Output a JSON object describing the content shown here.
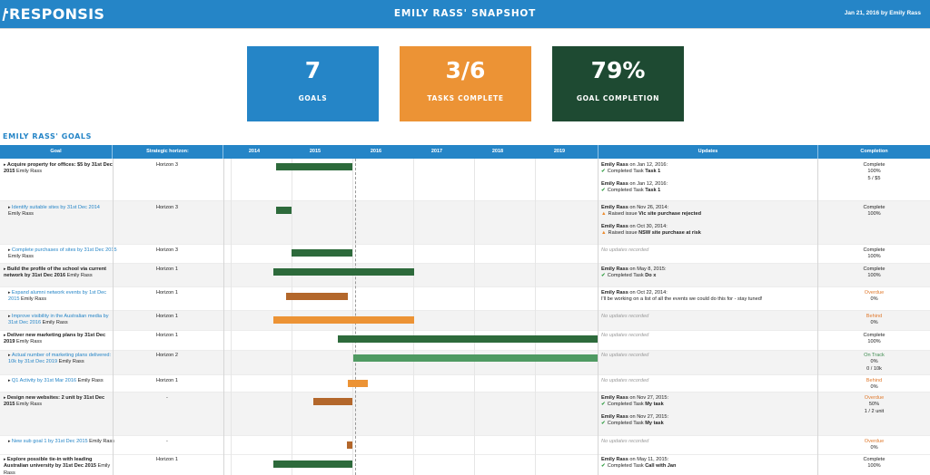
{
  "header": {
    "logo": "RESPONSIS",
    "title": "EMILY RASS' SNAPSHOT",
    "date": "Jan 21, 2016 by Emily Rass"
  },
  "tiles": [
    {
      "value": "7",
      "label": "GOALS",
      "color": "#2585c7"
    },
    {
      "value": "3/6",
      "label": "TASKS COMPLETE",
      "color": "#ec9335"
    },
    {
      "value": "79%",
      "label": "GOAL COMPLETION",
      "color": "#1e4a32"
    }
  ],
  "section_title": "EMILY RASS' GOALS",
  "columns": {
    "goal": "Goal",
    "horizon": "Strategic horizon:",
    "updates": "Updates",
    "completion": "Completion"
  },
  "years": [
    "2014",
    "2015",
    "2016",
    "2017",
    "2018",
    "2019"
  ],
  "colors": {
    "dark_green": "#2d6a3b",
    "light_green": "#4f9a62",
    "brown": "#b3672b",
    "orange": "#ec9335",
    "overdue": "#e07a2e",
    "complete": "#444444"
  },
  "rows": [
    {
      "goal": "Acquire property for offices: $5 by 31st Dec 2015",
      "owner": "Emily Rass",
      "sub": false,
      "horizon": "Horizon 3",
      "updates": [
        {
          "by": "Emily Rass",
          "on": " on Jan 12, 2016:",
          "kind": "ok",
          "pre": "Completed Task ",
          "what": "Task 1"
        },
        {
          "by": "Emily Rass",
          "on": " on Jan 12, 2016:",
          "kind": "ok",
          "pre": "Completed Task ",
          "what": "Task 1"
        }
      ],
      "completion": {
        "status": "Complete",
        "pct": "100%",
        "extra": "5 / $5"
      }
    },
    {
      "goal": "Identify suitable sites by 31st Dec 2014",
      "owner": "Emily Rass",
      "sub": true,
      "horizon": "Horizon 3",
      "updates": [
        {
          "by": "Emily Rass",
          "on": " on Nov 26, 2014:",
          "kind": "warn",
          "pre": "Raised issue ",
          "what": "Vic site purchase rejected"
        },
        {
          "by": "Emily Rass",
          "on": " on Oct 30, 2014:",
          "kind": "warn",
          "pre": "Raised issue ",
          "what": "NSW site purchase at risk"
        }
      ],
      "completion": {
        "status": "Complete",
        "pct": "100%",
        "extra": ""
      }
    },
    {
      "goal": "Complete purchases of sites by 31st Dec 2015",
      "owner": "Emily Rass",
      "sub": true,
      "horizon": "Horizon 3",
      "updates_none": "No updates recorded",
      "completion": {
        "status": "Complete",
        "pct": "100%",
        "extra": ""
      }
    },
    {
      "goal": "Build the profile of the school via current network by 31st Dec 2016",
      "owner": "Emily Rass",
      "sub": false,
      "horizon": "Horizon 1",
      "updates": [
        {
          "by": "Emily Rass",
          "on": " on May 8, 2015:",
          "kind": "ok",
          "pre": "Completed Task ",
          "what": "Do x"
        }
      ],
      "completion": {
        "status": "Complete",
        "pct": "100%",
        "extra": ""
      }
    },
    {
      "goal": "Expand alumni network events by 1st Dec 2015",
      "owner": "Emily Rass",
      "sub": true,
      "horizon": "Horizon 1",
      "updates": [
        {
          "by": "Emily Rass",
          "on": " on Oct 22, 2014:",
          "kind": "text",
          "pre": "",
          "what": "I'll be working on a list of all the events we could do this for - stay tuned!"
        }
      ],
      "completion": {
        "status": "Overdue",
        "pct": "0%",
        "extra": ""
      }
    },
    {
      "goal": "Improve visibility in the Australian media by 31st Dec 2016",
      "owner": "Emily Rass",
      "sub": true,
      "horizon": "Horizon 1",
      "updates_none": "No updates recorded",
      "completion": {
        "status": "Behind",
        "pct": "0%",
        "extra": ""
      }
    },
    {
      "goal": "Deliver new marketing plans by 31st Dec 2019",
      "owner": "Emily Rass",
      "sub": false,
      "horizon": "Horizon 1",
      "updates_none": "No updates recorded",
      "completion": {
        "status": "Complete",
        "pct": "100%",
        "extra": ""
      }
    },
    {
      "goal": "Actual number of marketing plans delivered: 10k by 31st Dec 2019",
      "owner": "Emily Rass",
      "sub": true,
      "horizon": "Horizon 2",
      "updates_none": "No updates recorded",
      "completion": {
        "status": "On Track",
        "pct": "0%",
        "extra": "0 / 10k"
      }
    },
    {
      "goal": "Q1 Activity by 31st Mar 2016",
      "owner": "Emily Rass",
      "sub": true,
      "horizon": "Horizon 1",
      "updates_none": "No updates recorded",
      "completion": {
        "status": "Behind",
        "pct": "0%",
        "extra": ""
      }
    },
    {
      "goal": "Design new websites: 2 unit by 31st Dec 2015",
      "owner": "Emily Rass",
      "sub": false,
      "horizon": "-",
      "updates": [
        {
          "by": "Emily Rass",
          "on": " on Nov 27, 2015:",
          "kind": "ok",
          "pre": "Completed Task ",
          "what": "My task"
        },
        {
          "by": "Emily Rass",
          "on": " on Nov 27, 2015:",
          "kind": "ok",
          "pre": "Completed Task ",
          "what": "My task"
        }
      ],
      "completion": {
        "status": "Overdue",
        "pct": "50%",
        "extra": "1 / 2 unit"
      }
    },
    {
      "goal": "New sub goal 1 by 31st Dec 2015",
      "owner": "Emily Rass",
      "sub": true,
      "horizon": "-",
      "updates_none": "No updates recorded",
      "completion": {
        "status": "Overdue",
        "pct": "0%",
        "extra": ""
      }
    },
    {
      "goal": "Explore possible tie-in with leading Australian university by 31st Dec 2015",
      "owner": "Emily Rass",
      "sub": false,
      "horizon": "Horizon 1",
      "updates": [
        {
          "by": "Emily Rass",
          "on": " on May 11, 2015:",
          "kind": "ok",
          "pre": "Completed Task ",
          "what": "Call with Jan"
        }
      ],
      "completion": {
        "status": "Complete",
        "pct": "100%",
        "extra": ""
      }
    }
  ]
}
